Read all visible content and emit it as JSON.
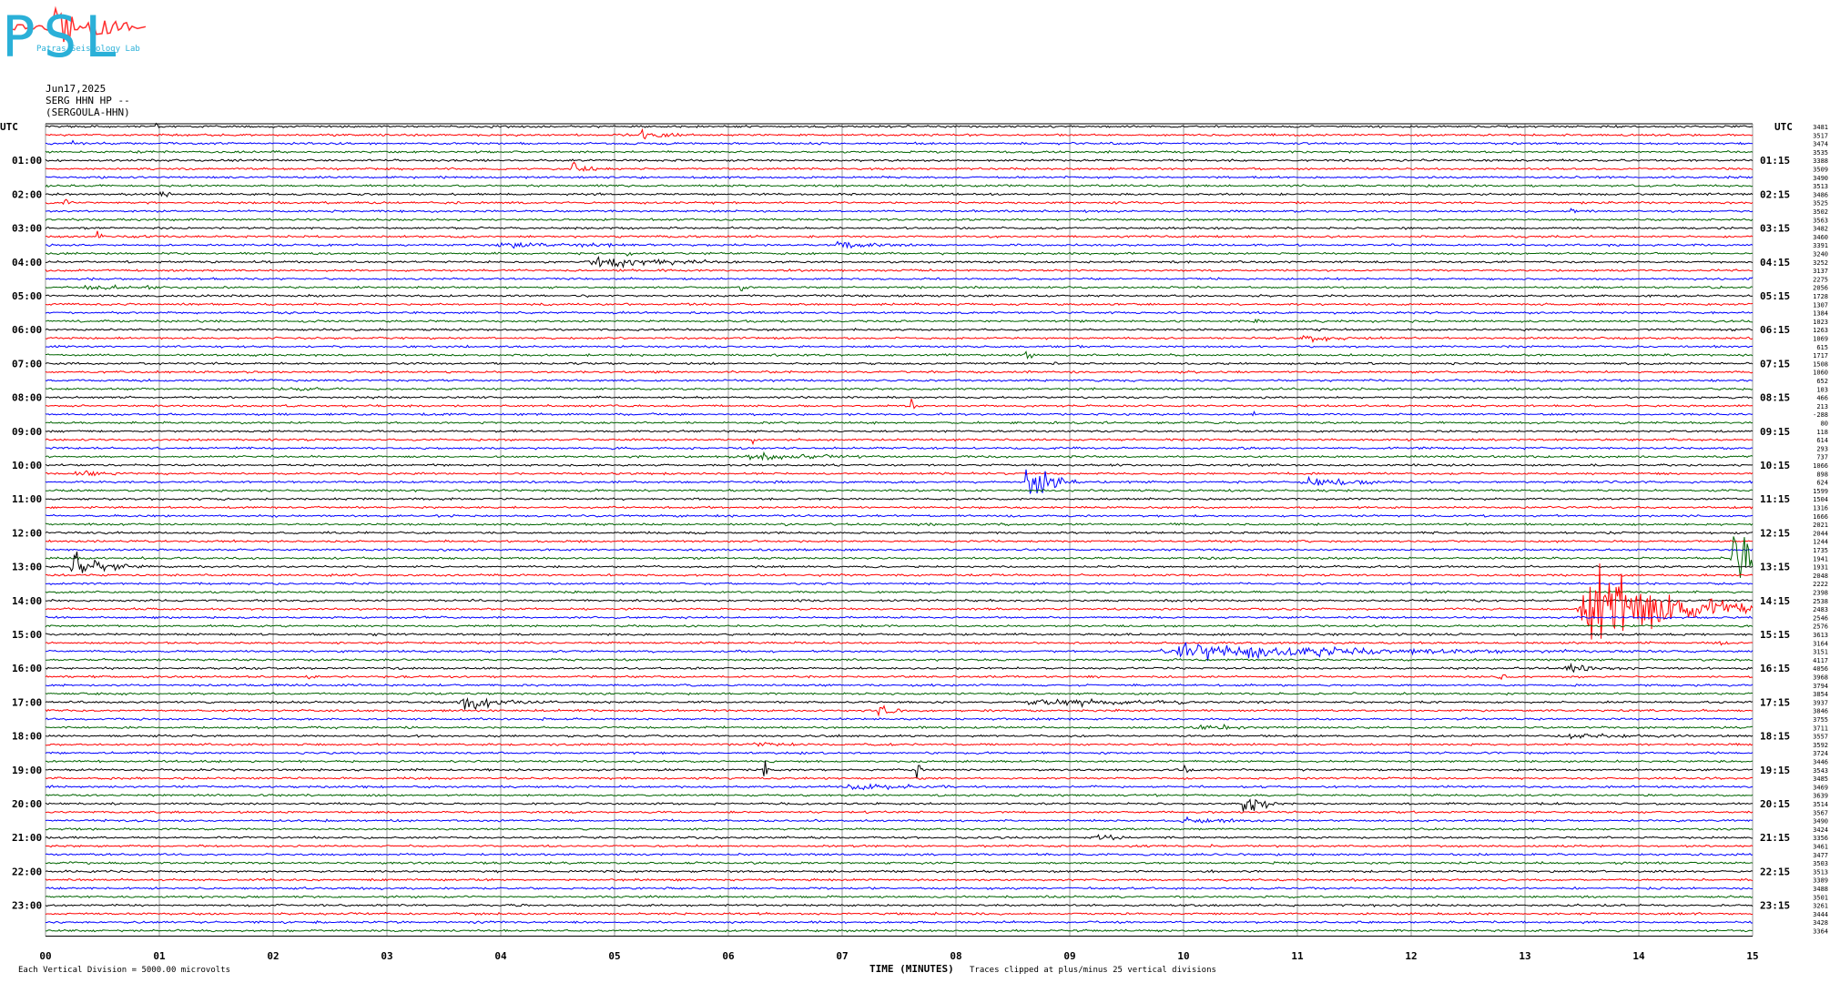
{
  "logo": {
    "text": "PSL",
    "subtitle": "Patras Seismology Lab"
  },
  "header": {
    "date": "Jun17,2025",
    "channel": "SERG HHN HP --",
    "station": "(SERGOULA-HHN)"
  },
  "chart_data": {
    "type": "line",
    "title": "Jun17,2025",
    "left_label": "UTC",
    "right_label": "UTC",
    "xlabel": "TIME (MINUTES)",
    "xlim": [
      0,
      15
    ],
    "x_ticks": [
      "00",
      "01",
      "02",
      "03",
      "04",
      "05",
      "06",
      "07",
      "08",
      "09",
      "10",
      "11",
      "12",
      "13",
      "14",
      "15"
    ],
    "left_hour_labels": [
      "01:00",
      "02:00",
      "03:00",
      "04:00",
      "05:00",
      "06:00",
      "07:00",
      "08:00",
      "09:00",
      "10:00",
      "11:00",
      "12:00",
      "13:00",
      "14:00",
      "15:00",
      "16:00",
      "17:00",
      "18:00",
      "19:00",
      "20:00",
      "21:00",
      "22:00",
      "23:00"
    ],
    "right_hour_labels": [
      "01:15",
      "02:15",
      "03:15",
      "04:15",
      "05:15",
      "06:15",
      "07:15",
      "08:15",
      "09:15",
      "10:15",
      "11:15",
      "12:15",
      "13:15",
      "14:15",
      "15:15",
      "16:15",
      "17:15",
      "18:15",
      "19:15",
      "20:15",
      "21:15",
      "22:15",
      "23:15"
    ],
    "trace_colors": [
      "#000000",
      "#ff0000",
      "#0000ff",
      "#006400"
    ],
    "trace_count": 96,
    "minutes_per_trace": 15,
    "trace_offsets": [
      "3481",
      "3517",
      "3474",
      "3535",
      "3388",
      "3509",
      "3490",
      "3513",
      "3486",
      "3525",
      "3502",
      "3563",
      "3482",
      "3460",
      "3391",
      "3240",
      "3252",
      "3137",
      "2275",
      "2056",
      "1728",
      "1307",
      "1384",
      "1023",
      "1263",
      "1069",
      "615",
      "1717",
      "1508",
      "1060",
      "652",
      "103",
      "466",
      "213",
      "-288",
      "80",
      "118",
      "614",
      "293",
      "737",
      "1066",
      "898",
      "624",
      "1599",
      "1504",
      "1316",
      "1666",
      "2021",
      "2044",
      "1244",
      "1735",
      "1941",
      "1931",
      "2048",
      "2222",
      "2398",
      "2538",
      "2483",
      "2546",
      "2576",
      "3613",
      "3164",
      "3151",
      "4117",
      "4056",
      "3968",
      "3794",
      "3854",
      "3937",
      "3846",
      "3755",
      "3711",
      "3557",
      "3592",
      "3724",
      "3446",
      "3543",
      "3485",
      "3469",
      "3639",
      "3514",
      "3567",
      "3490",
      "3424",
      "3356",
      "3461",
      "3477",
      "3503",
      "3513",
      "3389",
      "3488",
      "3501",
      "3261",
      "3444",
      "3428",
      "3364"
    ],
    "vertical_division_note": "Each Vertical Division = 5000.00 microvolts",
    "clipping_note": "Traces clipped at plus/minus 25 vertical divisions",
    "events": [
      {
        "trace": 0,
        "minute": 0.97,
        "amp": 6,
        "dur": 0.05
      },
      {
        "trace": 1,
        "minute": 5.2,
        "amp": 3,
        "dur": 0.35
      },
      {
        "trace": 2,
        "minute": 0.2,
        "amp": 3,
        "dur": 0.1
      },
      {
        "trace": 5,
        "minute": 4.6,
        "amp": 4,
        "dur": 0.25
      },
      {
        "trace": 8,
        "minute": 1.0,
        "amp": 2,
        "dur": 0.15
      },
      {
        "trace": 9,
        "minute": 0.15,
        "amp": 3,
        "dur": 0.1
      },
      {
        "trace": 10,
        "minute": 13.4,
        "amp": 3,
        "dur": 0.05
      },
      {
        "trace": 13,
        "minute": 0.45,
        "amp": 5,
        "dur": 0.05
      },
      {
        "trace": 14,
        "minute": 3.8,
        "amp": 1.5,
        "dur": 1.8
      },
      {
        "trace": 14,
        "minute": 6.9,
        "amp": 2.5,
        "dur": 0.6
      },
      {
        "trace": 15,
        "minute": 5.1,
        "amp": 3,
        "dur": 0.05
      },
      {
        "trace": 16,
        "minute": 4.7,
        "amp": 3,
        "dur": 1.2
      },
      {
        "trace": 18,
        "minute": 14.9,
        "amp": 2,
        "dur": 0.2
      },
      {
        "trace": 19,
        "minute": 0.3,
        "amp": 2,
        "dur": 0.8
      },
      {
        "trace": 19,
        "minute": 6.1,
        "amp": 3,
        "dur": 0.05
      },
      {
        "trace": 23,
        "minute": 10.6,
        "amp": 5,
        "dur": 0.05
      },
      {
        "trace": 25,
        "minute": 11.0,
        "amp": 2,
        "dur": 0.6
      },
      {
        "trace": 27,
        "minute": 8.6,
        "amp": 3,
        "dur": 0.1
      },
      {
        "trace": 31,
        "minute": 2.2,
        "amp": 2,
        "dur": 0.3
      },
      {
        "trace": 33,
        "minute": 7.6,
        "amp": 6,
        "dur": 0.05
      },
      {
        "trace": 34,
        "minute": 10.6,
        "amp": 2,
        "dur": 0.05
      },
      {
        "trace": 37,
        "minute": 6.2,
        "amp": 2,
        "dur": 0.1
      },
      {
        "trace": 39,
        "minute": 6.1,
        "amp": 2,
        "dur": 1.0
      },
      {
        "trace": 41,
        "minute": 0.2,
        "amp": 2,
        "dur": 0.5
      },
      {
        "trace": 42,
        "minute": 8.6,
        "amp": 16,
        "dur": 0.25
      },
      {
        "trace": 42,
        "minute": 11.0,
        "amp": 2.5,
        "dur": 0.8
      },
      {
        "trace": 52,
        "minute": 0.2,
        "amp": 8,
        "dur": 0.4
      },
      {
        "trace": 51,
        "minute": 14.8,
        "amp": 22,
        "dur": 0.3
      },
      {
        "trace": 53,
        "minute": 6.8,
        "amp": 2,
        "dur": 0.05
      },
      {
        "trace": 57,
        "minute": 13.45,
        "amp": 30,
        "dur": 1.0
      },
      {
        "trace": 61,
        "minute": 14.7,
        "amp": 3,
        "dur": 0.05
      },
      {
        "trace": 62,
        "minute": 9.7,
        "amp": 5,
        "dur": 2.5
      },
      {
        "trace": 64,
        "minute": 13.3,
        "amp": 3,
        "dur": 0.4
      },
      {
        "trace": 65,
        "minute": 2.3,
        "amp": 2,
        "dur": 0.1
      },
      {
        "trace": 65,
        "minute": 12.75,
        "amp": 3,
        "dur": 0.1
      },
      {
        "trace": 68,
        "minute": 3.6,
        "amp": 4,
        "dur": 0.6
      },
      {
        "trace": 68,
        "minute": 8.5,
        "amp": 2,
        "dur": 1.8
      },
      {
        "trace": 69,
        "minute": 7.3,
        "amp": 5,
        "dur": 0.15
      },
      {
        "trace": 71,
        "minute": 10.1,
        "amp": 2,
        "dur": 0.5
      },
      {
        "trace": 72,
        "minute": 13.3,
        "amp": 2,
        "dur": 0.8
      },
      {
        "trace": 73,
        "minute": 6.2,
        "amp": 2,
        "dur": 0.4
      },
      {
        "trace": 76,
        "minute": 6.3,
        "amp": 7,
        "dur": 0.05
      },
      {
        "trace": 76,
        "minute": 7.65,
        "amp": 7,
        "dur": 0.05
      },
      {
        "trace": 76,
        "minute": 10.0,
        "amp": 3,
        "dur": 0.05
      },
      {
        "trace": 78,
        "minute": 7.0,
        "amp": 2.5,
        "dur": 0.7
      },
      {
        "trace": 80,
        "minute": 10.5,
        "amp": 9,
        "dur": 0.2
      },
      {
        "trace": 82,
        "minute": 9.9,
        "amp": 2.5,
        "dur": 0.8
      },
      {
        "trace": 84,
        "minute": 9.2,
        "amp": 2,
        "dur": 0.3
      },
      {
        "trace": 85,
        "minute": 10.2,
        "amp": 2,
        "dur": 0.1
      },
      {
        "trace": 95,
        "minute": 9.0,
        "amp": 2,
        "dur": 0.1
      }
    ]
  }
}
